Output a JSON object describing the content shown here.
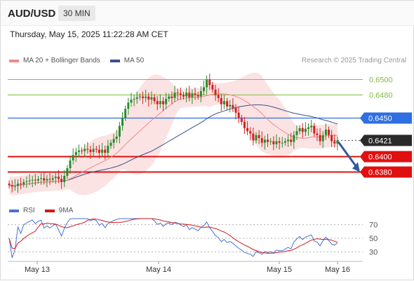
{
  "header": {
    "symbol": "AUD/USD",
    "timeframe": "30 MIN",
    "datetime": "Thursday, May 15, 2025 11:22:28 AM CET"
  },
  "legend": {
    "ma20_label": "MA 20 + Bollinger Bands",
    "ma50_label": "MA 50",
    "rsi_label": "RSI",
    "rsi_ma_label": "9MA",
    "copyright": "Research © 2025 Trading Central"
  },
  "colors": {
    "candle_up": "#2b8a2b",
    "candle_down": "#d32020",
    "ma20": "#f08a8a",
    "bollinger_fill": "#fadede",
    "ma50": "#3a4f8a",
    "support": "#e01010",
    "resistance": "#2f6fe0",
    "green_level": "#7fbf3f",
    "rsi": "#4a72d0",
    "rsi_ma": "#d01818",
    "arrow": "#2f5aa0"
  },
  "chart_data": [
    {
      "type": "candlestick",
      "x_axis_labels": [
        "May 13",
        "May 14",
        "May 15",
        "May 16"
      ],
      "price_range": [
        0.6355,
        0.6515
      ],
      "levels": [
        {
          "price": 0.65,
          "label": "0.6500",
          "kind": "target"
        },
        {
          "price": 0.648,
          "label": "0.6480",
          "kind": "target"
        },
        {
          "price": 0.645,
          "label": "0.6450",
          "kind": "resistance"
        },
        {
          "price": 0.6421,
          "label": "0.6421",
          "kind": "last"
        },
        {
          "price": 0.64,
          "label": "0.6400",
          "kind": "support"
        },
        {
          "price": 0.638,
          "label": "0.6380",
          "kind": "support"
        }
      ],
      "arrow": {
        "from": 0.6418,
        "to": 0.638,
        "direction": "down"
      },
      "close_series": [
        0.6363,
        0.6361,
        0.6362,
        0.6365,
        0.6364,
        0.6367,
        0.6368,
        0.6369,
        0.637,
        0.6369,
        0.6371,
        0.6372,
        0.6369,
        0.6371,
        0.637,
        0.6372,
        0.6374,
        0.6371,
        0.6367,
        0.6375,
        0.6385,
        0.6395,
        0.6402,
        0.6406,
        0.6408,
        0.6407,
        0.641,
        0.6409,
        0.6406,
        0.641,
        0.6409,
        0.6405,
        0.6409,
        0.6405,
        0.6414,
        0.6418,
        0.6423,
        0.6426,
        0.644,
        0.645,
        0.6462,
        0.647,
        0.6474,
        0.6475,
        0.6477,
        0.6478,
        0.6476,
        0.6478,
        0.6474,
        0.6477,
        0.6472,
        0.6468,
        0.6472,
        0.6468,
        0.6475,
        0.6478,
        0.6476,
        0.6483,
        0.6482,
        0.648,
        0.6478,
        0.6483,
        0.6477,
        0.6482,
        0.648,
        0.6478,
        0.6485,
        0.649,
        0.65,
        0.6493,
        0.6487,
        0.648,
        0.6476,
        0.6468,
        0.6472,
        0.6465,
        0.6467,
        0.6463,
        0.6457,
        0.645,
        0.6445,
        0.6437,
        0.6433,
        0.643,
        0.6421,
        0.6428,
        0.6424,
        0.6418,
        0.6422,
        0.6419,
        0.642,
        0.6416,
        0.642,
        0.6418,
        0.6418,
        0.642,
        0.6422,
        0.6419,
        0.6428,
        0.6433,
        0.6437,
        0.6432,
        0.6436,
        0.6438,
        0.644,
        0.643,
        0.6428,
        0.642,
        0.6428,
        0.6435,
        0.6428,
        0.642,
        0.6417,
        0.6421
      ]
    },
    {
      "type": "line",
      "name": "RSI",
      "yticks": [
        70,
        50,
        30
      ],
      "ylim": [
        20,
        80
      ]
    }
  ]
}
